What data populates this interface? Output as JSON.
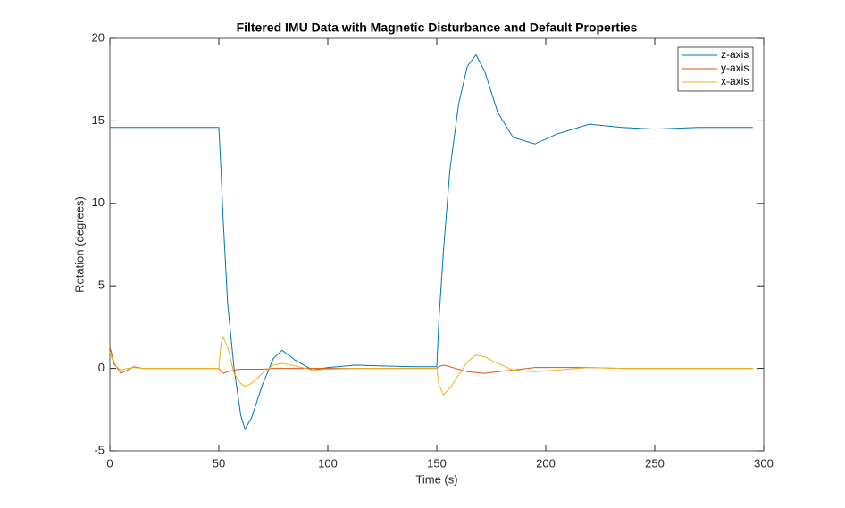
{
  "chart_data": {
    "type": "line",
    "title": "Filtered IMU Data with Magnetic Disturbance and Default Properties",
    "x_label": "Time (s)",
    "y_label": "Rotation (degrees)",
    "x": [
      0,
      2,
      5,
      8,
      11,
      15,
      20,
      30,
      40,
      49.5,
      50,
      51,
      52,
      54,
      57,
      60,
      62,
      65,
      70,
      75,
      79,
      85,
      93,
      100,
      113,
      125,
      140,
      149.5,
      150,
      151,
      153,
      156,
      160,
      164,
      168,
      172,
      178,
      185,
      195,
      205,
      220,
      235,
      250,
      270,
      295
    ],
    "series": [
      {
        "name": "z-axis",
        "color": "#0072bd",
        "values": [
          14.6,
          14.6,
          14.6,
          14.6,
          14.6,
          14.6,
          14.6,
          14.6,
          14.6,
          14.6,
          14.6,
          12,
          9,
          4,
          0,
          -2.8,
          -3.7,
          -3,
          -1,
          0.6,
          1.1,
          0.5,
          -0.1,
          0.05,
          0.2,
          0.15,
          0.1,
          0.1,
          0.1,
          3,
          7,
          12,
          16,
          18.3,
          19,
          18,
          15.5,
          14,
          13.6,
          14.2,
          14.8,
          14.6,
          14.5,
          14.6,
          14.6
        ]
      },
      {
        "name": "y-axis",
        "color": "#d95319",
        "values": [
          1.3,
          0.3,
          -0.3,
          -0.1,
          0.1,
          0,
          0,
          0,
          0,
          0,
          0,
          -0.2,
          -0.3,
          -0.2,
          -0.1,
          -0.05,
          -0.05,
          -0.05,
          -0.05,
          0,
          0,
          0,
          0,
          0,
          0,
          0,
          0,
          0,
          0,
          0.1,
          0.2,
          0.1,
          -0.05,
          -0.2,
          -0.25,
          -0.3,
          -0.2,
          -0.1,
          0.05,
          0.05,
          0.05,
          0,
          0,
          0,
          0
        ]
      },
      {
        "name": "x-axis",
        "color": "#edb120",
        "values": [
          1,
          0.2,
          -0.1,
          0,
          0.05,
          0,
          0,
          0,
          0,
          0,
          0,
          1.5,
          1.9,
          1.3,
          -0.3,
          -0.9,
          -1.1,
          -0.9,
          -0.3,
          0.2,
          0.3,
          0.15,
          -0.1,
          -0.05,
          0,
          0,
          0,
          0,
          0,
          -1,
          -1.6,
          -1.2,
          -0.4,
          0.4,
          0.8,
          0.7,
          0.3,
          -0.1,
          -0.2,
          -0.1,
          0.05,
          0,
          0,
          0,
          0
        ]
      }
    ],
    "xlim": [
      0,
      300
    ],
    "xticks": [
      0,
      50,
      100,
      150,
      200,
      250,
      300
    ],
    "ylim": [
      -5,
      20
    ],
    "yticks": [
      -5,
      0,
      5,
      10,
      15,
      20
    ],
    "legend": "northeast"
  }
}
